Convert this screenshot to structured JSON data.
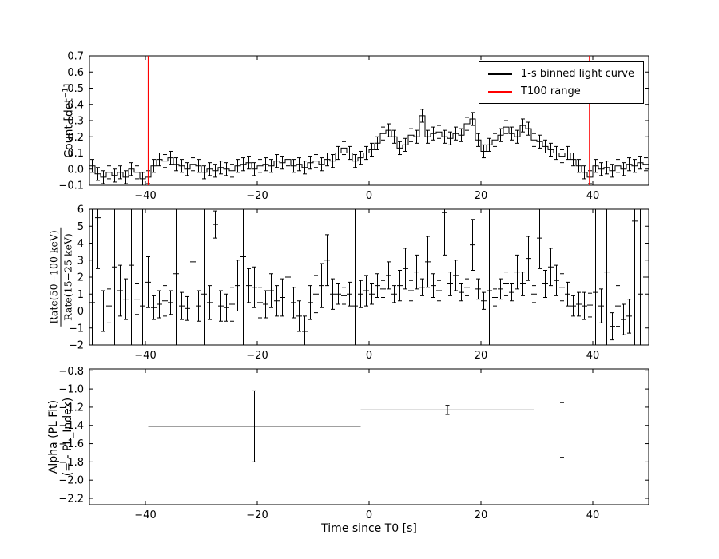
{
  "figure": {
    "xlabel": "Time since T0 [s]",
    "background_color": "#ffffff",
    "axis_color": "#000000",
    "data_color": "#000000",
    "t100_color": "#ff0000"
  },
  "panel1": {
    "ylabel": {
      "pre": "Count [det",
      "sup": "−1",
      "post": "]"
    },
    "legend": [
      {
        "label": "1-s binned light curve",
        "color": "#000000"
      },
      {
        "label": "T100 range",
        "color": "#ff0000"
      }
    ]
  },
  "panel2": {
    "ylabel": {
      "numerator": "Rate(50−100 keV)",
      "denominator": "Rate(15−25 keV)"
    }
  },
  "panel3": {
    "ylabel_line1": "Alpha (PL Fit)",
    "ylabel_line2": "(= - PL_Index)"
  },
  "chart_data": [
    {
      "type": "bar",
      "subtype": "errorbar-step-lightcurve",
      "title": "",
      "xlabel": "",
      "ylabel": "Count [det^-1]",
      "xlim": [
        -50,
        50
      ],
      "ylim": [
        -0.1,
        0.7
      ],
      "xtick_values": [
        -40,
        -20,
        0,
        20,
        40
      ],
      "xticks": [
        "−40",
        "−20",
        "0",
        "20",
        "40"
      ],
      "ytick_values": [
        0.7,
        0.6,
        0.5,
        0.4,
        0.3,
        0.2,
        0.1,
        0.0,
        -0.1
      ],
      "yticks": [
        "0.7",
        "0.6",
        "0.5",
        "0.4",
        "0.3",
        "0.2",
        "0.1",
        "0.0",
        "−0.1"
      ],
      "legend": [
        "1-s binned light curve",
        "T100 range"
      ],
      "legend_position": "upper right",
      "grid": false,
      "t0": -49.5,
      "dt": 1,
      "n": 100,
      "bin_width": 1,
      "yerr": 0.04,
      "t100_range": [
        -39.5,
        39.4
      ],
      "counts": [
        0.02,
        -0.03,
        -0.05,
        -0.02,
        -0.04,
        -0.02,
        -0.05,
        0.0,
        -0.02,
        -0.06,
        -0.05,
        0.02,
        0.06,
        0.05,
        0.07,
        0.03,
        0.02,
        0.0,
        0.03,
        0.02,
        -0.02,
        0.0,
        -0.01,
        0.01,
        0.0,
        -0.01,
        0.02,
        0.03,
        0.04,
        0.0,
        0.02,
        0.03,
        0.02,
        0.05,
        0.04,
        0.06,
        0.02,
        0.03,
        0.01,
        0.04,
        0.05,
        0.03,
        0.06,
        0.05,
        0.1,
        0.13,
        0.1,
        0.05,
        0.07,
        0.1,
        0.12,
        0.16,
        0.22,
        0.24,
        0.2,
        0.13,
        0.15,
        0.21,
        0.2,
        0.33,
        0.2,
        0.22,
        0.23,
        0.2,
        0.19,
        0.22,
        0.21,
        0.28,
        0.31,
        0.18,
        0.11,
        0.15,
        0.18,
        0.21,
        0.26,
        0.22,
        0.2,
        0.27,
        0.25,
        0.18,
        0.17,
        0.14,
        0.12,
        0.1,
        0.08,
        0.1,
        0.06,
        0.02,
        -0.02,
        -0.05,
        0.02,
        0.0,
        0.01,
        -0.01,
        0.02,
        0.0,
        0.03,
        0.02,
        0.04,
        0.03
      ]
    },
    {
      "type": "scatter",
      "subtype": "errorbar-hardness-ratio",
      "title": "",
      "xlabel": "",
      "ylabel": "Rate(50-100 keV)/Rate(15-25 keV)",
      "xlim": [
        -50,
        50
      ],
      "ylim": [
        -2,
        6
      ],
      "xtick_values": [
        -40,
        -20,
        0,
        20,
        40
      ],
      "xticks": [
        "−40",
        "−20",
        "0",
        "20",
        "40"
      ],
      "ytick_values": [
        6,
        5,
        4,
        3,
        2,
        1,
        0,
        -1,
        -2
      ],
      "yticks": [
        "6",
        "5",
        "4",
        "3",
        "2",
        "1",
        "0",
        "−1",
        "−2"
      ],
      "grid": false,
      "t0": -49.5,
      "dt": 1,
      "n": 100,
      "xerr": 0.5,
      "values": [
        0.5,
        5.5,
        0.0,
        0.3,
        2.6,
        1.2,
        0.7,
        2.7,
        0.7,
        0.3,
        1.7,
        0.2,
        0.4,
        0.6,
        0.5,
        2.2,
        0.3,
        0.15,
        2.9,
        0.3,
        1.0,
        0.5,
        5.1,
        0.3,
        0.2,
        0.4,
        1.5,
        3.2,
        1.5,
        1.4,
        0.5,
        0.4,
        1.2,
        0.6,
        0.8,
        2.0,
        0.5,
        -0.3,
        -1.2,
        0.5,
        1.0,
        1.5,
        3.0,
        1.0,
        1.0,
        0.9,
        1.0,
        0.3,
        1.0,
        1.2,
        1.0,
        1.5,
        1.3,
        2.1,
        1.0,
        1.5,
        2.5,
        1.2,
        2.3,
        1.4,
        2.9,
        1.5,
        1.2,
        5.8,
        1.6,
        2.1,
        1.1,
        1.4,
        3.9,
        1.3,
        0.6,
        1.2,
        0.8,
        1.3,
        1.6,
        1.1,
        2.3,
        1.6,
        3.1,
        1.0,
        4.3,
        1.6,
        2.6,
        1.8,
        1.4,
        1.0,
        0.3,
        0.4,
        0.3,
        0.35,
        1.1,
        0.3,
        2.3,
        -0.9,
        0.3,
        -0.5,
        -0.3,
        5.3,
        1.0,
        2.0
      ],
      "yerr": [
        9,
        3,
        1.2,
        1.0,
        9,
        1.5,
        1.2,
        9,
        0.9,
        9,
        1.5,
        0.7,
        0.8,
        0.9,
        0.7,
        9,
        0.8,
        0.7,
        9,
        0.9,
        9,
        1.0,
        0.8,
        0.9,
        0.8,
        1.0,
        1.5,
        9,
        1.0,
        1.2,
        0.9,
        0.8,
        1.0,
        0.9,
        1.1,
        9,
        0.9,
        0.9,
        0.9,
        1.0,
        1.1,
        1.3,
        1.5,
        0.9,
        0.6,
        0.5,
        0.7,
        9,
        0.8,
        0.9,
        0.6,
        0.7,
        0.5,
        0.8,
        0.5,
        0.9,
        1.2,
        0.6,
        1.0,
        0.5,
        1.5,
        0.7,
        0.6,
        2.5,
        0.7,
        0.9,
        0.5,
        0.5,
        1.5,
        0.6,
        0.5,
        9,
        0.5,
        0.6,
        0.7,
        0.5,
        1.0,
        0.7,
        1.3,
        0.5,
        1.8,
        0.8,
        1.1,
        0.9,
        0.8,
        0.7,
        0.6,
        0.7,
        0.8,
        0.7,
        9,
        1.0,
        9,
        0.8,
        1.2,
        0.9,
        1.0,
        9,
        9,
        9
      ]
    },
    {
      "type": "scatter",
      "subtype": "errorbar-pl-index",
      "title": "",
      "xlabel": "Time since T0 [s]",
      "ylabel": "Alpha (PL Fit) (= - PL_Index)",
      "xlim": [
        -50,
        50
      ],
      "ylim": [
        -2.27,
        -0.78
      ],
      "xtick_values": [
        -40,
        -20,
        0,
        20,
        40
      ],
      "xticks": [
        "−40",
        "−20",
        "0",
        "20",
        "40"
      ],
      "ytick_values": [
        -0.8,
        -1.0,
        -1.2,
        -1.4,
        -1.6,
        -1.8,
        -2.0,
        -2.2
      ],
      "yticks": [
        "−0.8",
        "−1.0",
        "−1.2",
        "−1.4",
        "−1.6",
        "−1.8",
        "−2.0",
        "−2.2"
      ],
      "grid": false,
      "points": [
        {
          "x": -20.5,
          "y": -1.41,
          "xerr": 19.0,
          "yerr": 0.39
        },
        {
          "x": 14.0,
          "y": -1.23,
          "xerr": 15.5,
          "yerr": 0.05
        },
        {
          "x": 34.5,
          "y": -1.45,
          "xerr": 4.9,
          "yerr": 0.3
        }
      ]
    }
  ]
}
